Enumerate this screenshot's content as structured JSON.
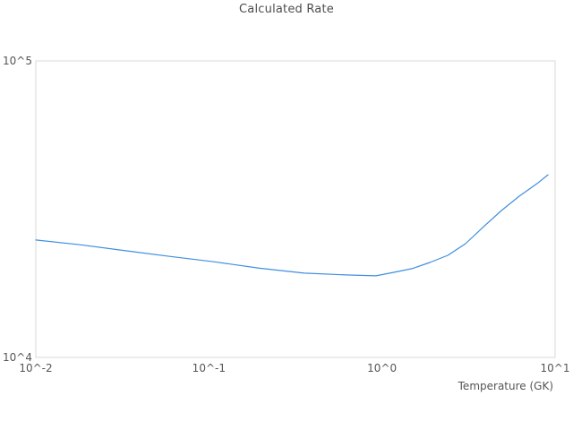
{
  "colors": {
    "line": "#3f8fe0",
    "plot_border": "#d9d9d9",
    "tick_text": "#555555",
    "title_text": "#4d4d4d",
    "background": "#ffffff"
  },
  "chart_data": {
    "type": "line",
    "title": "Calculated Rate",
    "xlabel": "Temperature (GK)",
    "ylabel": "",
    "x_scale": "log",
    "y_scale": "log",
    "xlim": [
      0.01,
      10
    ],
    "ylim": [
      10000,
      100000
    ],
    "grid": false,
    "legend": false,
    "x_ticks": [
      {
        "value": 0.01,
        "label": "10^-2"
      },
      {
        "value": 0.1,
        "label": "10^-1"
      },
      {
        "value": 1,
        "label": "10^0"
      },
      {
        "value": 10,
        "label": "10^1"
      }
    ],
    "y_ticks": [
      {
        "value": 10000,
        "label": "10^4"
      },
      {
        "value": 100000,
        "label": "10^5"
      }
    ],
    "series": [
      {
        "name": "Calculated Rate",
        "x": [
          0.01,
          0.018,
          0.033,
          0.06,
          0.108,
          0.196,
          0.356,
          0.646,
          0.924,
          1.17,
          1.49,
          1.89,
          2.4,
          3.04,
          3.86,
          4.9,
          6.22,
          7.89,
          9.1
        ],
        "y": [
          24900,
          24000,
          22900,
          21900,
          21000,
          20000,
          19250,
          18970,
          18840,
          19370,
          19920,
          20900,
          22100,
          24200,
          27600,
          31300,
          35000,
          38600,
          41300
        ]
      }
    ]
  }
}
